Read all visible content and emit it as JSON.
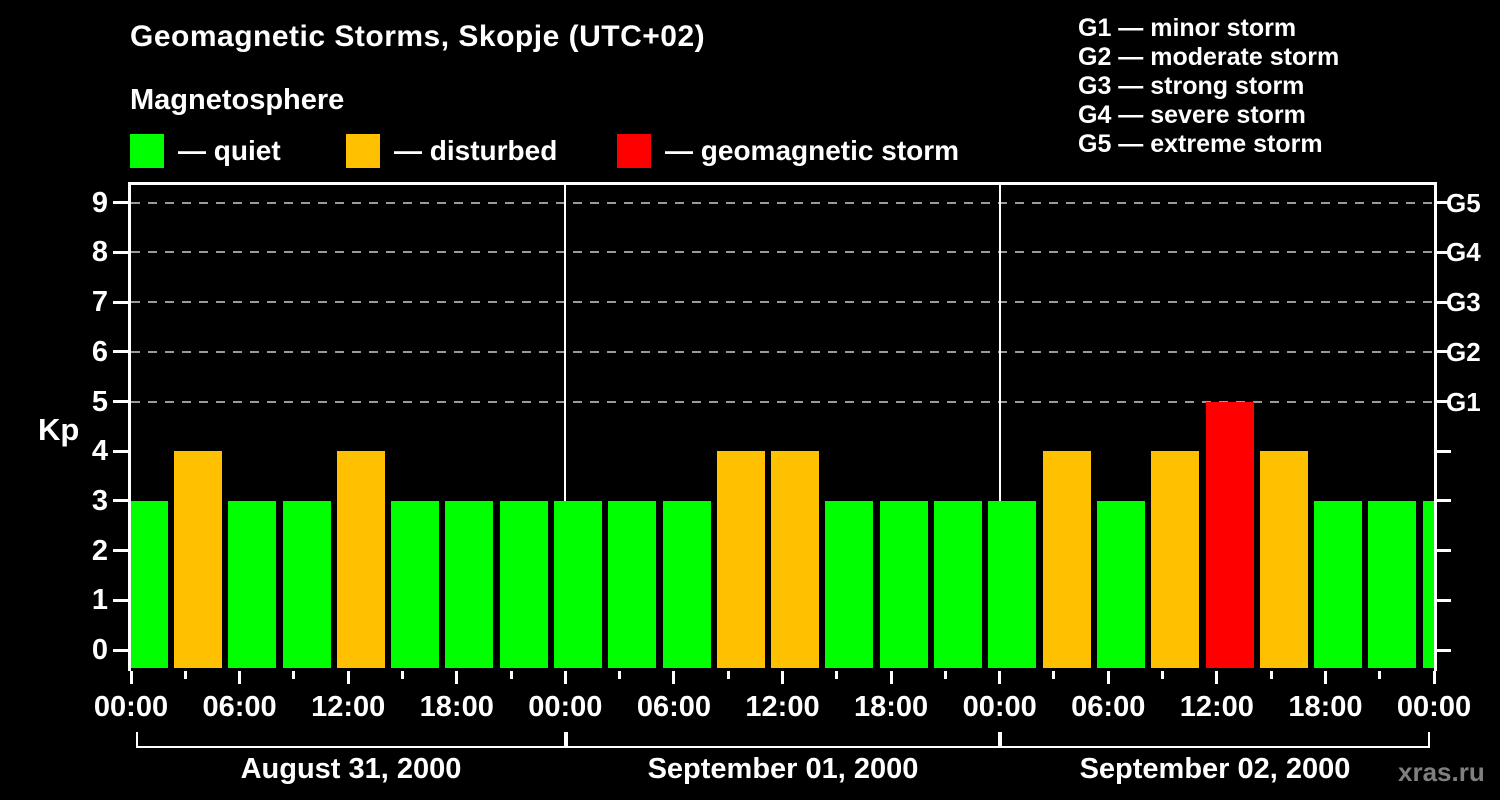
{
  "header": {
    "title": "Geomagnetic Storms, Skopje (UTC+02)",
    "subtitle": "Magnetosphere"
  },
  "palette": {
    "background": "#000000",
    "text": "#ffffff",
    "quiet": "#00ff00",
    "disturbed": "#ffc000",
    "storm": "#ff0000",
    "grid": "#9a9a9a",
    "watermark": "#7f7f7f"
  },
  "legend": {
    "items": [
      {
        "key": "quiet",
        "label": "— quiet"
      },
      {
        "key": "disturbed",
        "label": "— disturbed"
      },
      {
        "key": "storm",
        "label": "— geomagnetic storm"
      }
    ]
  },
  "g_legend": {
    "items": [
      "G1 — minor storm",
      "G2 — moderate storm",
      "G3 — strong storm",
      "G4 — severe storm",
      "G5 — extreme storm"
    ]
  },
  "y_axis": {
    "label": "Kp",
    "ticks": [
      0,
      1,
      2,
      3,
      4,
      5,
      6,
      7,
      8,
      9
    ]
  },
  "x_axis": {
    "major_labels": [
      "00:00",
      "06:00",
      "12:00",
      "18:00",
      "00:00",
      "06:00",
      "12:00",
      "18:00",
      "00:00",
      "06:00",
      "12:00",
      "18:00",
      "00:00"
    ],
    "minor_tick_hours": 3,
    "major_tick_hours": 6
  },
  "watermark": "xras.ru",
  "chart_data": {
    "type": "bar",
    "title": "Geomagnetic Storms, Skopje (UTC+02)",
    "ylabel": "Kp",
    "ylim": [
      0,
      9
    ],
    "interval_hours": 3,
    "grid": "dashed horizontal lines at Kp 5,6,7,8,9 (G1–G5 levels)",
    "legend_position": "top",
    "days": [
      {
        "date": "August 31, 2000",
        "kp": [
          3,
          4,
          3,
          3,
          4,
          3,
          3,
          3
        ]
      },
      {
        "date": "September 01, 2000",
        "kp": [
          3,
          3,
          3,
          4,
          4,
          3,
          3,
          3
        ]
      },
      {
        "date": "September 02, 2000",
        "kp": [
          3,
          4,
          3,
          4,
          5,
          4,
          3,
          3
        ]
      }
    ],
    "next_day_partial_kp": 3,
    "color_rules": {
      "quiet_max_kp": 3,
      "disturbed_kp": 4,
      "storm_min_kp": 5
    },
    "g_levels": [
      {
        "label": "G1",
        "kp": 5
      },
      {
        "label": "G2",
        "kp": 6
      },
      {
        "label": "G3",
        "kp": 7
      },
      {
        "label": "G4",
        "kp": 8
      },
      {
        "label": "G5",
        "kp": 9
      }
    ]
  }
}
